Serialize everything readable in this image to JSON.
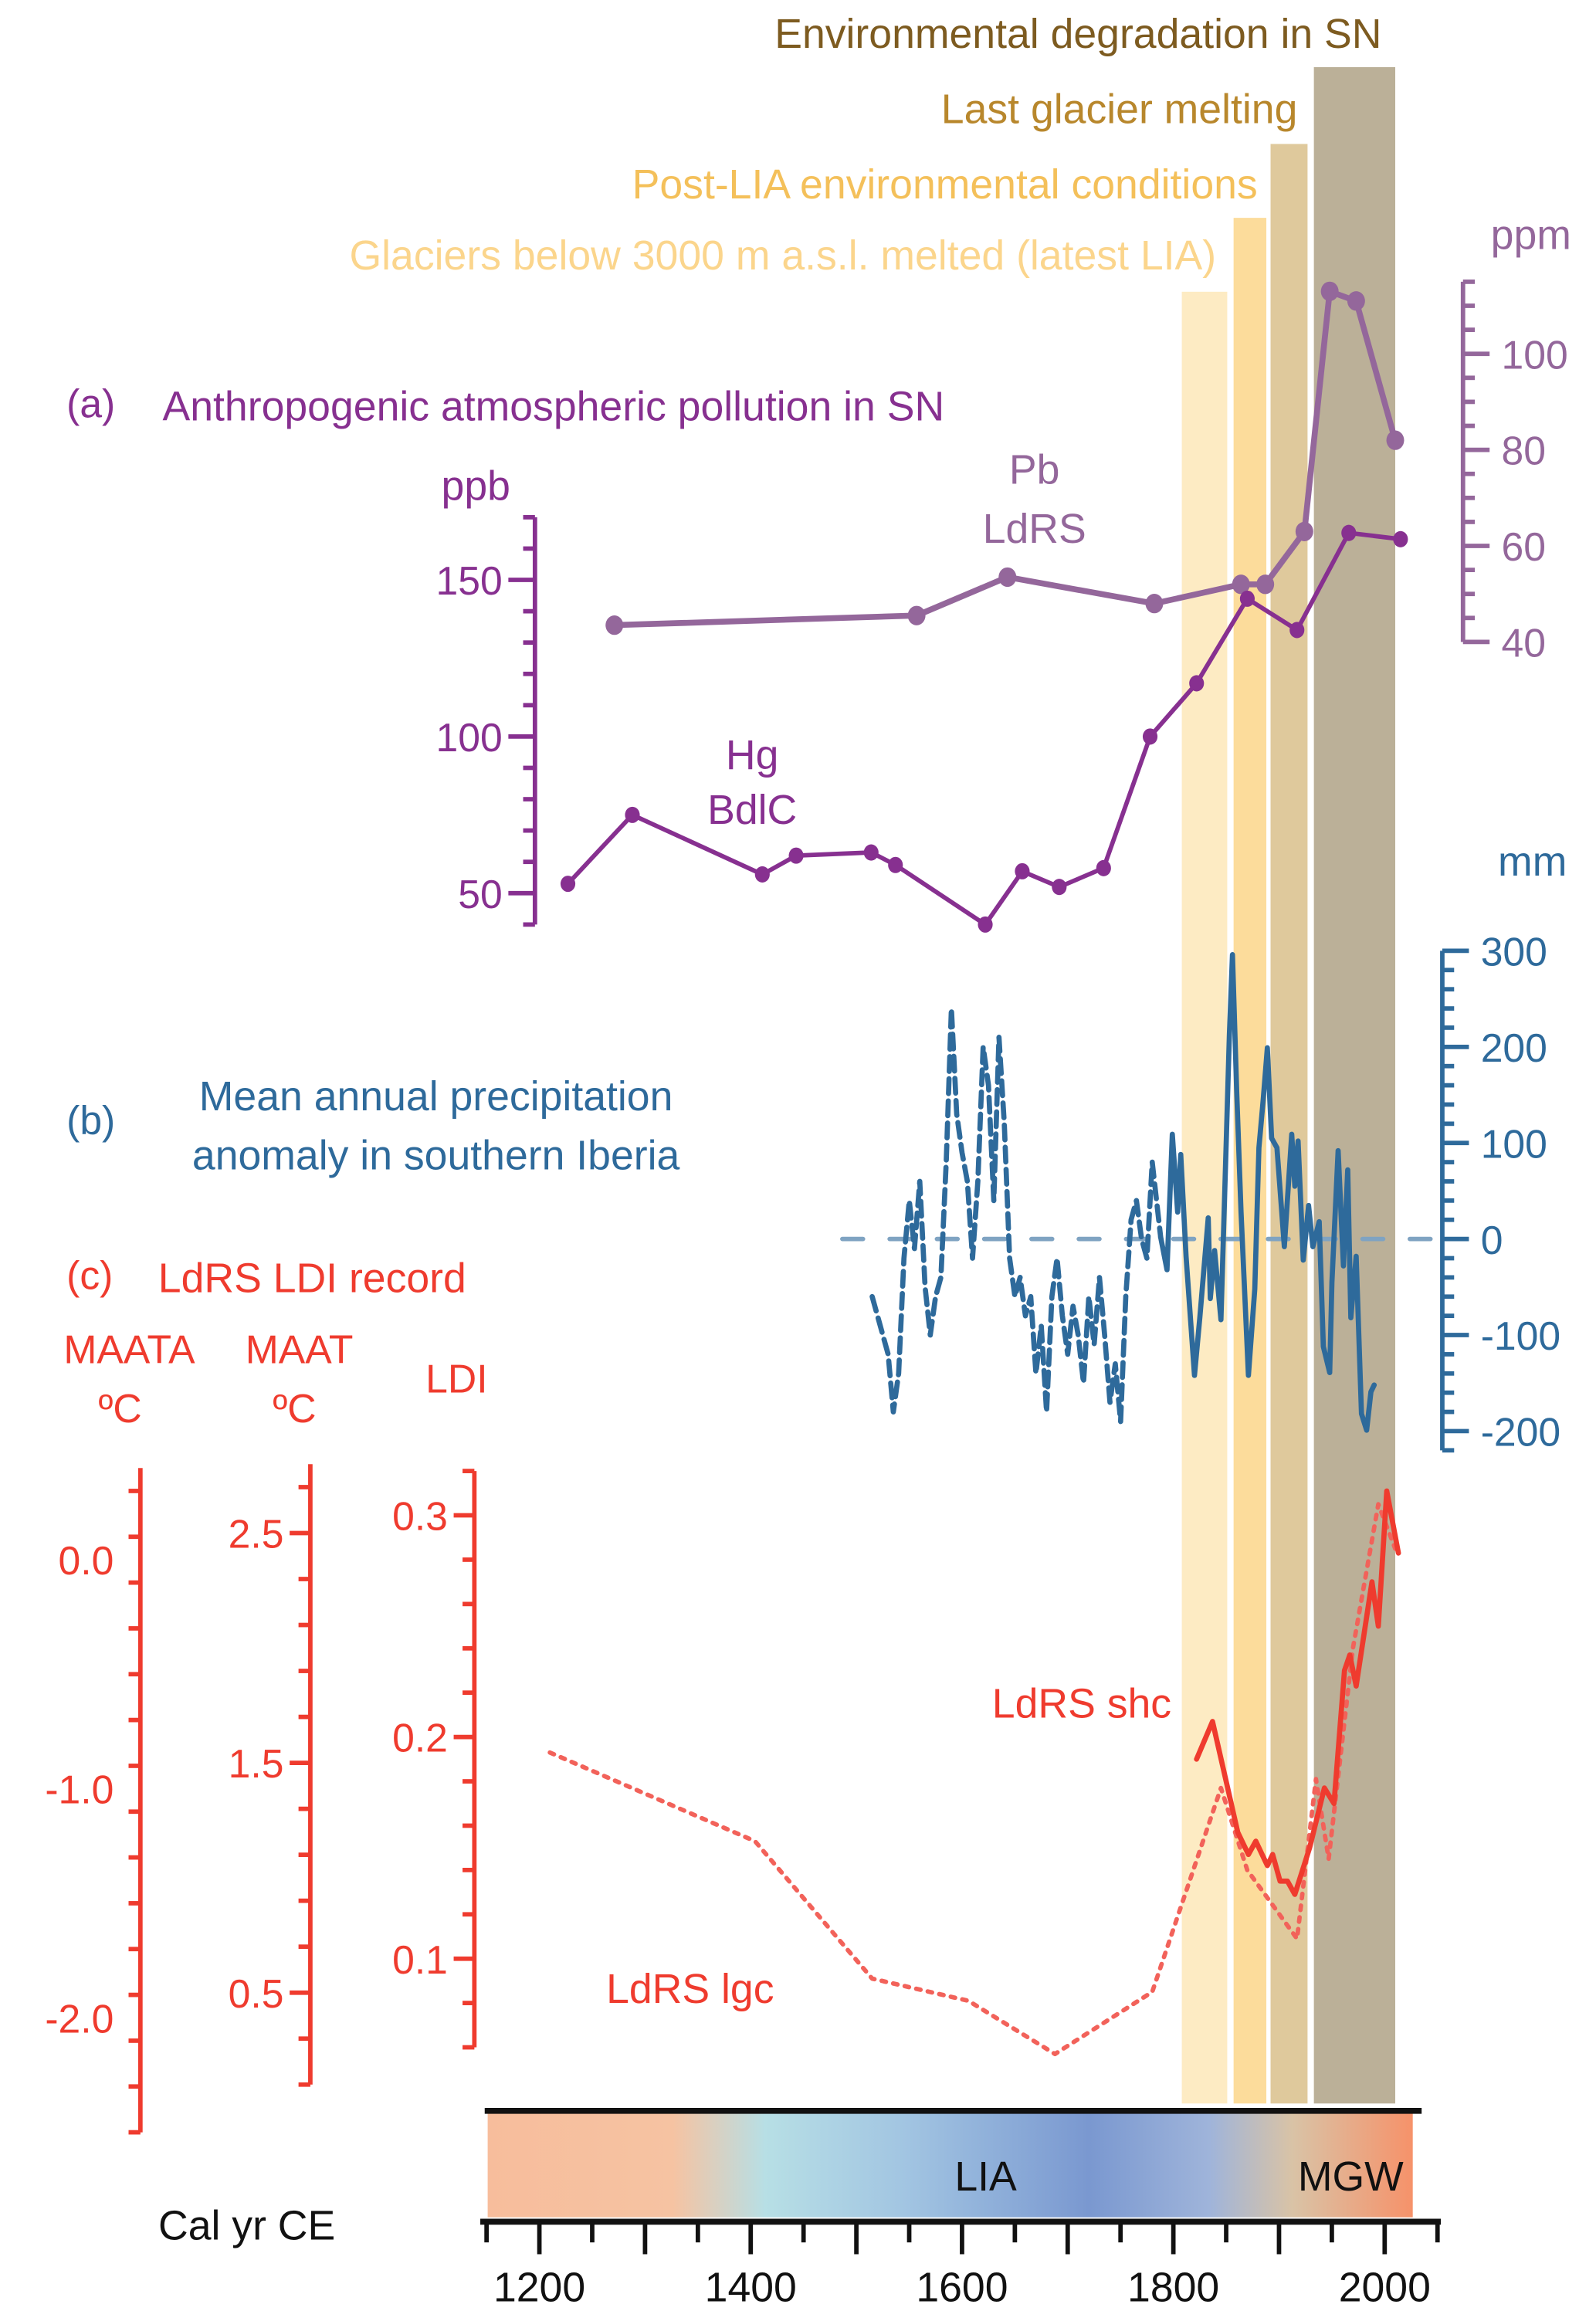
{
  "colors": {
    "band1": "#fdebc3",
    "band2": "#fcdc9b",
    "band3": "#dfc99c",
    "band4": "#bbb098",
    "band1_text": "#fbd58c",
    "band2_text": "#f4c05a",
    "band3_text": "#b8872c",
    "band4_text": "#7d5b20",
    "hg": "#873090",
    "pb": "#94679b",
    "precip": "#2e6a9b",
    "precip_zero": "#7fa3c2",
    "ldi": "#ef3b2e",
    "ldi_lgc": "#f2625a"
  },
  "events": [
    {
      "label": "Glaciers below 3000 m a.s.l. melted (latest LIA)",
      "start": 1808,
      "end": 1851
    },
    {
      "label": "Post-LIA environmental conditions",
      "start": 1857,
      "end": 1888
    },
    {
      "label": "Last glacier melting",
      "start": 1892,
      "end": 1927
    },
    {
      "label": "Environmental degradation in SN",
      "start": 1933,
      "end": 2010
    }
  ],
  "panel_a": {
    "letter": "(a)",
    "title": "Anthropogenic atmospheric pollution in SN"
  },
  "panel_b": {
    "letter": "(b)",
    "title_line1": "Mean annual precipitation",
    "title_line2": "anomaly in southern Iberia"
  },
  "panel_c": {
    "letter": "(c)",
    "title": "LdRS LDI record"
  },
  "chart_data": [
    {
      "type": "line",
      "panel": "a",
      "series": [
        {
          "name": "Hg BdlC",
          "name_line1": "Hg",
          "name_line2": "BdlC",
          "unit": "ppb",
          "x": [
            1227,
            1288,
            1411,
            1443,
            1514,
            1537,
            1622,
            1657,
            1692,
            1734,
            1778,
            1822,
            1870,
            1917,
            1966,
            2015
          ],
          "y": [
            53,
            75,
            56,
            62,
            63,
            59,
            40,
            57,
            52,
            58,
            100,
            117,
            144,
            134,
            165,
            163
          ]
        },
        {
          "name": "Pb LdRS",
          "name_line1": "Pb",
          "name_line2": "LdRS",
          "unit": "ppm",
          "x": [
            1271,
            1557,
            1643,
            1782,
            1864,
            1887,
            1924,
            1948,
            1973,
            2010
          ],
          "y": [
            43.5,
            45.5,
            53.5,
            48,
            52,
            52,
            63,
            113,
            111,
            82
          ]
        }
      ],
      "y_left": {
        "label": "ppb",
        "range": [
          40,
          170
        ],
        "ticks": [
          50,
          100,
          150
        ]
      },
      "y_right": {
        "label": "ppm",
        "range": [
          40,
          115
        ],
        "ticks": [
          40,
          60,
          80,
          100
        ]
      }
    },
    {
      "type": "line",
      "panel": "b",
      "ylabel": "mm",
      "ylim": [
        -220,
        300
      ],
      "ticks": [
        300,
        200,
        100,
        0,
        -100,
        -200
      ],
      "reference_line": 0,
      "series": [
        {
          "style": "dashed",
          "x": [
            1515,
            1520,
            1525,
            1530,
            1535,
            1540,
            1545,
            1550,
            1555,
            1560,
            1565,
            1570,
            1575,
            1580,
            1585,
            1590,
            1595,
            1600,
            1605,
            1610,
            1615,
            1620,
            1625,
            1630,
            1635,
            1640,
            1645,
            1650,
            1655,
            1660,
            1665,
            1670,
            1675,
            1680,
            1685,
            1690,
            1695,
            1700,
            1705,
            1710,
            1715,
            1720,
            1725,
            1730,
            1735,
            1740,
            1745,
            1750,
            1755,
            1760,
            1765,
            1770,
            1775,
            1780,
            1788
          ],
          "y": [
            -60,
            -80,
            -100,
            -120,
            -180,
            -140,
            -20,
            40,
            -10,
            60,
            -50,
            -100,
            -60,
            -40,
            80,
            240,
            130,
            90,
            60,
            -20,
            60,
            200,
            160,
            40,
            210,
            120,
            -20,
            -60,
            -40,
            -80,
            -60,
            -140,
            -90,
            -180,
            -60,
            -20,
            -80,
            -120,
            -70,
            -100,
            -150,
            -60,
            -110,
            -40,
            -100,
            -170,
            -130,
            -190,
            -60,
            20,
            40,
            0,
            -20,
            80,
            2
          ]
        },
        {
          "style": "solid",
          "x": [
            1788,
            1794,
            1799,
            1804,
            1807,
            1812,
            1820,
            1825,
            1833,
            1835,
            1839,
            1845,
            1850,
            1853,
            1856,
            1860,
            1864,
            1871,
            1877,
            1881,
            1885,
            1889,
            1893,
            1898,
            1905,
            1912,
            1915,
            1918,
            1923,
            1928,
            1932,
            1938,
            1942,
            1948,
            1950,
            1956,
            1961,
            1965,
            1968,
            1973,
            1978,
            1983,
            1987,
            1990
          ],
          "y": [
            2,
            -32,
            109,
            28,
            88,
            -18,
            -142,
            -82,
            22,
            -62,
            -12,
            -84,
            102,
            212,
            296,
            152,
            28,
            -142,
            -52,
            95,
            145,
            199,
            105,
            95,
            -8,
            109,
            55,
            102,
            -22,
            35,
            -8,
            18,
            -112,
            -139,
            -45,
            92,
            -28,
            72,
            -82,
            -18,
            -182,
            -199,
            -159,
            -152
          ]
        }
      ]
    },
    {
      "type": "line",
      "panel": "c",
      "axes": [
        {
          "label_line1": "MAATA",
          "label_line2": "ºC",
          "ticks": [
            "0.0",
            "-1.0",
            "-2.0"
          ],
          "range": [
            -2.5,
            0.4
          ]
        },
        {
          "label_line1": "MAAT",
          "label_line2": "ºC",
          "ticks": [
            "2.5",
            "1.5",
            "0.5"
          ],
          "range": [
            0.0,
            2.8
          ]
        },
        {
          "label_line1": "LDI",
          "label_line2": "",
          "ticks": [
            "0.3",
            "0.2",
            "0.1"
          ],
          "range": [
            0.05,
            0.32
          ]
        }
      ],
      "series": [
        {
          "name": "LdRS shc",
          "style": "solid",
          "x": [
            1822,
            1837,
            1861,
            1871,
            1878,
            1889,
            1894,
            1901,
            1908,
            1915,
            1929,
            1943,
            1952,
            1962,
            1967,
            1973,
            1988,
            1994,
            2002,
            2013
          ],
          "y": [
            0.19,
            0.207,
            0.157,
            0.147,
            0.153,
            0.142,
            0.147,
            0.135,
            0.135,
            0.129,
            0.15,
            0.177,
            0.17,
            0.23,
            0.237,
            0.223,
            0.27,
            0.25,
            0.311,
            0.283
          ]
        },
        {
          "name": "LdRS lgc",
          "style": "dotted",
          "x": [
            1210,
            1404,
            1515,
            1606,
            1688,
            1780,
            1845,
            1870,
            1917,
            1935,
            1947,
            1970,
            1994,
            2010
          ],
          "y": [
            0.193,
            0.153,
            0.091,
            0.081,
            0.057,
            0.085,
            0.177,
            0.14,
            0.109,
            0.181,
            0.145,
            0.24,
            0.305,
            0.285
          ]
        }
      ]
    },
    {
      "type": "timeline",
      "xlabel": "Cal yr CE",
      "xlim": [
        1150,
        2050
      ],
      "xticks": [
        1200,
        1400,
        1600,
        1800,
        2000
      ],
      "periods": [
        {
          "label": "LIA"
        },
        {
          "label": "MGW"
        }
      ]
    }
  ]
}
